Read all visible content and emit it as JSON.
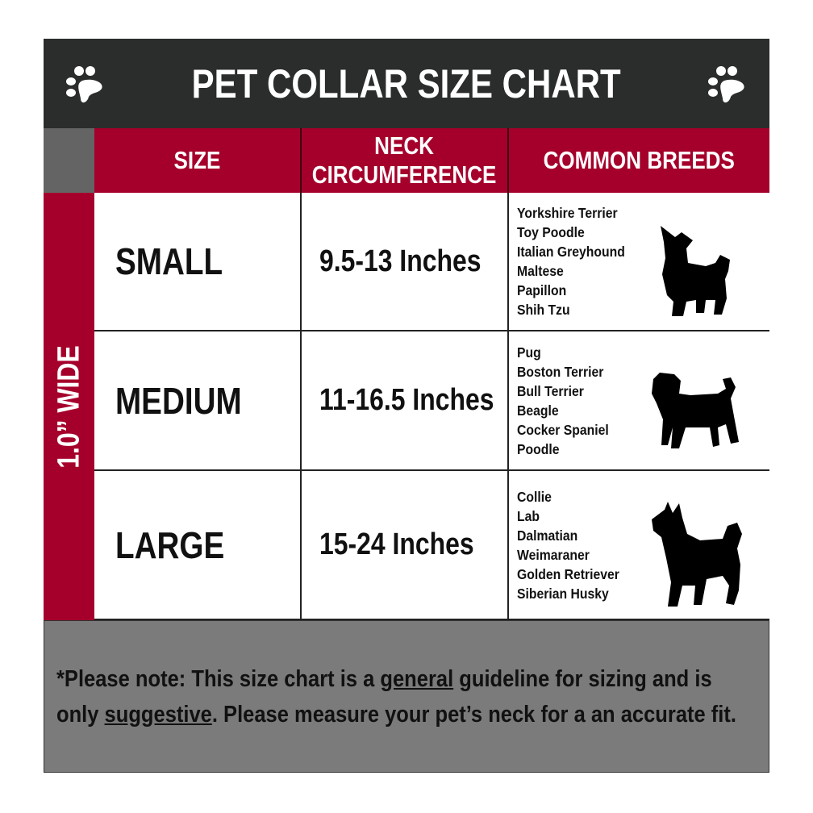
{
  "title": "PET COLLAR SIZE CHART",
  "icons": {
    "left": "paw-print-icon",
    "right": "paw-print-icon"
  },
  "colors": {
    "header": "#2b2d2d",
    "accent": "#a5002b",
    "corner": "#646464",
    "footer": "#7b7b7b"
  },
  "side_label": "1.0” WIDE",
  "columns": [
    "SIZE",
    "NECK CIRCUMFERENCE",
    "COMMON BREEDS"
  ],
  "neck_header_lines": [
    "NECK",
    "CIRCUMFERENCE"
  ],
  "rows": [
    {
      "size": "SMALL",
      "neck": "9.5-13 Inches",
      "breeds": [
        "Yorkshire Terrier",
        "Toy Poodle",
        "Italian Greyhound",
        "Maltese",
        "Papillon",
        "Shih Tzu"
      ],
      "image": "yorkshire-terrier-silhouette"
    },
    {
      "size": "MEDIUM",
      "neck": "11-16.5 Inches",
      "breeds": [
        "Pug",
        "Boston Terrier",
        "Bull Terrier",
        "Beagle",
        "Cocker Spaniel",
        "Poodle"
      ],
      "image": "pug-silhouette"
    },
    {
      "size": "LARGE",
      "neck": "15-24 Inches",
      "breeds": [
        "Collie",
        "Lab",
        "Dalmatian",
        "Weimaraner",
        "Golden Retriever",
        "Siberian Husky"
      ],
      "image": "husky-silhouette"
    }
  ],
  "note": {
    "part1": "*Please note: This size chart is a ",
    "em1": "general",
    "part2": " guideline for sizing and is",
    "part3": "only ",
    "em2": "suggestive",
    "part4": ". Please measure your pet’s neck for a an accurate fit."
  }
}
